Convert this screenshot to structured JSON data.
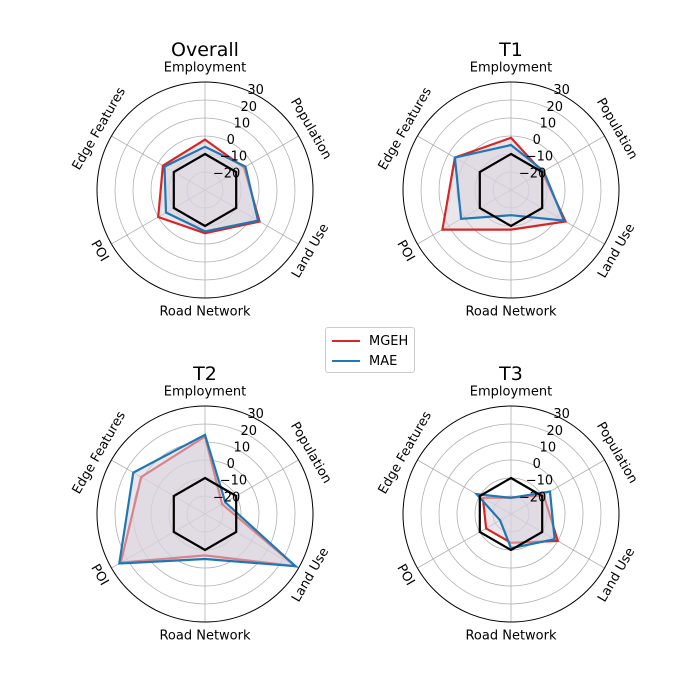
{
  "chart_data": [
    {
      "type": "radar",
      "title": "Overall",
      "axes": [
        "Employment",
        "Population",
        "Land Use",
        "Road Network",
        "POI",
        "Edge Features"
      ],
      "r_range": [
        -30,
        30
      ],
      "r_ticks": [
        "30",
        "20",
        "10",
        "0",
        "−10",
        "−20"
      ],
      "series": [
        {
          "name": "MGEH",
          "values": [
            -2,
            -5,
            5,
            -6,
            0,
            -3
          ]
        },
        {
          "name": "MAE",
          "values": [
            -6,
            -4,
            4,
            -7,
            -5,
            -4
          ]
        },
        {
          "values": [
            -10,
            -10,
            -10,
            -10,
            -10,
            -10
          ]
        }
      ]
    },
    {
      "type": "radar",
      "title": "T1",
      "axes": [
        "Employment",
        "Population",
        "Land Use",
        "Road Network",
        "POI",
        "Edge Features"
      ],
      "r_range": [
        -30,
        30
      ],
      "r_ticks": [
        "30",
        "20",
        "10",
        "0",
        "−10",
        "−20"
      ],
      "series": [
        {
          "name": "MGEH",
          "values": [
            -1,
            -10,
            5,
            -8,
            14,
            6
          ]
        },
        {
          "name": "MAE",
          "values": [
            -5,
            -9,
            4,
            -16,
            2,
            6
          ]
        },
        {
          "values": [
            -10,
            -10,
            -10,
            -10,
            -10,
            -10
          ]
        }
      ]
    },
    {
      "type": "radar",
      "title": "T2",
      "axes": [
        "Employment",
        "Population",
        "Land Use",
        "Road Network",
        "POI",
        "Edge Features"
      ],
      "r_range": [
        -30,
        30
      ],
      "r_ticks": [
        "30",
        "20",
        "10",
        "0",
        "−10",
        "−20"
      ],
      "series": [
        {
          "name": "MGEH",
          "values": [
            13,
            -19,
            28,
            -7,
            24,
            11
          ]
        },
        {
          "name": "MAE",
          "values": [
            14,
            -17,
            28,
            -5,
            25,
            16
          ]
        },
        {
          "values": [
            -10,
            -10,
            -10,
            -10,
            -10,
            -10
          ]
        }
      ]
    },
    {
      "type": "radar",
      "title": "T3",
      "axes": [
        "Employment",
        "Population",
        "Land Use",
        "Road Network",
        "POI",
        "Edge Features"
      ],
      "r_range": [
        -30,
        30
      ],
      "r_ticks": [
        "30",
        "20",
        "10",
        "0",
        "−10",
        "−20"
      ],
      "series": [
        {
          "name": "MGEH",
          "values": [
            -21,
            -9,
            0,
            -14,
            -14,
            -12
          ]
        },
        {
          "name": "MAE",
          "values": [
            -21,
            -5,
            -2,
            -11,
            -23,
            -8
          ]
        },
        {
          "values": [
            -10,
            -10,
            -10,
            -10,
            -10,
            -10
          ]
        }
      ]
    }
  ],
  "legend": {
    "entries": [
      {
        "label": "MGEH",
        "color": "#d62728"
      },
      {
        "label": "MAE",
        "color": "#1f77b4"
      }
    ]
  },
  "colors": {
    "MGEH": "#d62728",
    "MAE": "#1f77b4",
    "baseline": "#000000",
    "fill": "#d9d1dc",
    "grid": "#b0b0b0"
  }
}
